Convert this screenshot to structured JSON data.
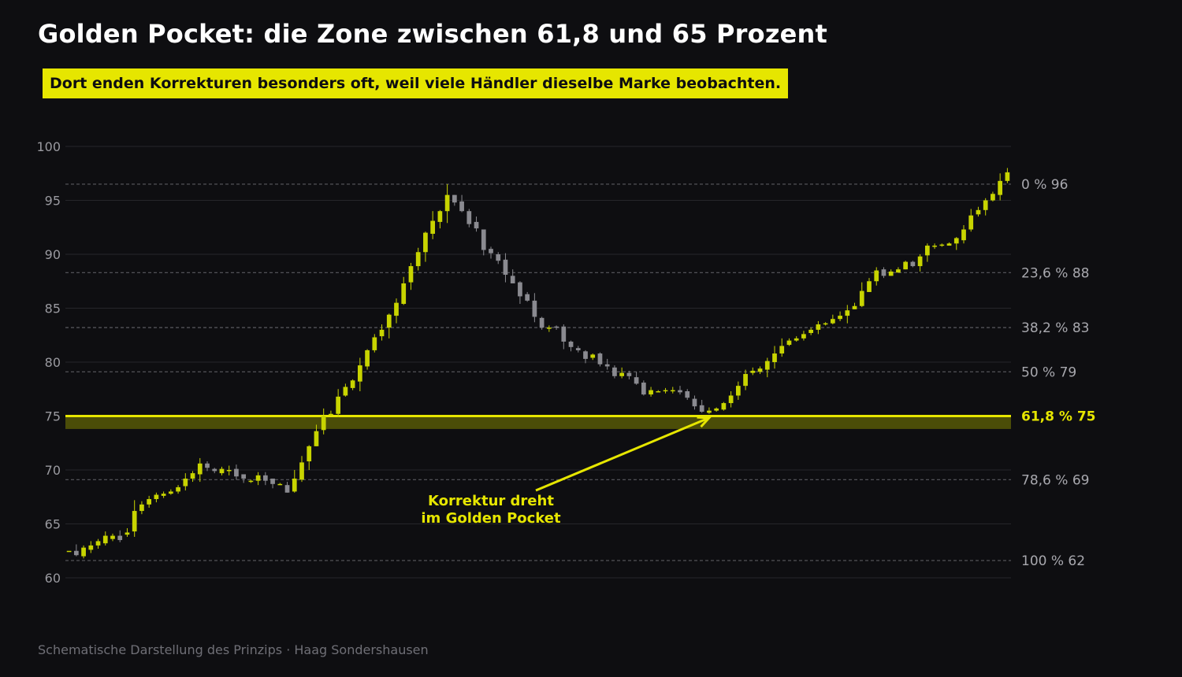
{
  "title": "Golden Pocket: die Zone zwischen 61,8 und 65 Prozent",
  "subtitle": "Dort enden Korrekturen besonders oft, weil viele Händler dieselbe Marke beobachten.",
  "footer": "Schematische Darstellung des Prinzips  ·  Haag Sondershausen",
  "colors": {
    "background": "#0e0e11",
    "accent": "#e6e600",
    "bull": "#c8d400",
    "bear": "#8a8a90",
    "grid": "#26262b",
    "fib_line": "#5a5a60",
    "zone_fill": "#4b4d08"
  },
  "chart_data": {
    "type": "candlestick",
    "ylim": [
      60,
      100
    ],
    "yticks": [
      60,
      65,
      70,
      75,
      80,
      85,
      90,
      95,
      100
    ],
    "grid": true,
    "fib_levels": [
      {
        "pct": "0 %",
        "price": "96",
        "value": 96.5,
        "highlight": false
      },
      {
        "pct": "23,6 %",
        "price": "88",
        "value": 88.3,
        "highlight": false
      },
      {
        "pct": "38,2 %",
        "price": "83",
        "value": 83.2,
        "highlight": false
      },
      {
        "pct": "50 %",
        "price": "79",
        "value": 79.1,
        "highlight": false
      },
      {
        "pct": "61,8 %",
        "price": "75",
        "value": 75.0,
        "highlight": true
      },
      {
        "pct": "78,6 %",
        "price": "69",
        "value": 69.1,
        "highlight": false
      },
      {
        "pct": "100 %",
        "price": "62",
        "value": 61.6,
        "highlight": false
      }
    ],
    "golden_pocket": [
      73.8,
      75.0
    ],
    "annotation": {
      "lines": [
        "Korrektur dreht",
        "im Golden Pocket"
      ],
      "target_candle": 88
    },
    "candles": [
      [
        62.5,
        62.5,
        62.5,
        62.5
      ],
      [
        62.5,
        62.1,
        63.1,
        62.0
      ],
      [
        62.0,
        62.8,
        63.0,
        61.8
      ],
      [
        62.6,
        63.0,
        63.4,
        62.3
      ],
      [
        63.0,
        63.4,
        63.6,
        62.7
      ],
      [
        63.2,
        63.9,
        64.3,
        63.0
      ],
      [
        63.6,
        63.9,
        64.1,
        63.4
      ],
      [
        63.9,
        63.5,
        64.4,
        63.3
      ],
      [
        64.0,
        64.2,
        64.6,
        63.8
      ],
      [
        64.3,
        66.2,
        67.2,
        63.8
      ],
      [
        66.2,
        66.8,
        67.1,
        65.9
      ],
      [
        66.8,
        67.3,
        67.6,
        66.5
      ],
      [
        67.3,
        67.7,
        67.9,
        67.0
      ],
      [
        67.6,
        67.8,
        68.0,
        67.4
      ],
      [
        67.8,
        68.0,
        68.2,
        67.7
      ],
      [
        68.0,
        68.4,
        68.6,
        67.8
      ],
      [
        68.5,
        69.2,
        69.7,
        68.1
      ],
      [
        69.2,
        69.7,
        69.9,
        68.9
      ],
      [
        69.6,
        70.6,
        71.1,
        68.9
      ],
      [
        70.6,
        70.2,
        70.8,
        69.9
      ],
      [
        70.1,
        69.9,
        70.2,
        69.7
      ],
      [
        69.7,
        70.1,
        70.3,
        69.5
      ],
      [
        69.9,
        70.0,
        70.4,
        69.5
      ],
      [
        70.1,
        69.4,
        70.5,
        69.1
      ],
      [
        69.6,
        69.2,
        69.6,
        68.8
      ],
      [
        69.0,
        69.0,
        69.1,
        68.8
      ],
      [
        69.0,
        69.5,
        69.8,
        68.6
      ],
      [
        69.5,
        69.0,
        69.8,
        68.6
      ],
      [
        69.2,
        68.7,
        69.2,
        68.3
      ],
      [
        68.6,
        68.7,
        68.8,
        68.6
      ],
      [
        68.6,
        67.9,
        68.9,
        67.9
      ],
      [
        68.0,
        69.2,
        70.0,
        67.9
      ],
      [
        69.1,
        70.7,
        71.3,
        68.9
      ],
      [
        70.8,
        72.2,
        72.3,
        70.0
      ],
      [
        72.2,
        73.6,
        74.2,
        72.2
      ],
      [
        73.7,
        75.0,
        75.7,
        73.3
      ],
      [
        75.1,
        75.2,
        75.5,
        75.0
      ],
      [
        75.2,
        76.8,
        77.5,
        74.9
      ],
      [
        76.9,
        77.7,
        78.0,
        76.8
      ],
      [
        77.6,
        78.3,
        78.4,
        77.4
      ],
      [
        78.2,
        79.7,
        80.4,
        77.3
      ],
      [
        79.6,
        81.1,
        81.2,
        79.3
      ],
      [
        81.1,
        82.3,
        82.6,
        80.9
      ],
      [
        82.4,
        83.0,
        83.5,
        82.0
      ],
      [
        83.2,
        84.4,
        84.5,
        82.2
      ],
      [
        84.3,
        85.5,
        85.9,
        83.6
      ],
      [
        85.4,
        87.3,
        87.9,
        85.3
      ],
      [
        87.4,
        88.9,
        89.2,
        86.7
      ],
      [
        88.9,
        90.2,
        90.6,
        88.5
      ],
      [
        90.2,
        92.0,
        92.1,
        89.3
      ],
      [
        91.9,
        93.1,
        94.0,
        91.4
      ],
      [
        93.0,
        94.0,
        94.1,
        92.4
      ],
      [
        94.0,
        95.5,
        96.5,
        92.9
      ],
      [
        95.5,
        94.8,
        95.5,
        94.5
      ],
      [
        94.9,
        94.0,
        95.5,
        93.9
      ],
      [
        94.0,
        92.8,
        94.2,
        92.5
      ],
      [
        93.0,
        92.4,
        93.5,
        92.1
      ],
      [
        92.3,
        90.4,
        92.3,
        89.9
      ],
      [
        90.5,
        90.1,
        90.7,
        89.6
      ],
      [
        90.0,
        89.4,
        90.2,
        89.1
      ],
      [
        89.5,
        88.1,
        90.1,
        87.4
      ],
      [
        88.0,
        87.3,
        88.6,
        87.3
      ],
      [
        87.4,
        86.1,
        87.5,
        85.4
      ],
      [
        86.3,
        85.7,
        86.5,
        85.6
      ],
      [
        85.7,
        84.2,
        86.4,
        83.7
      ],
      [
        84.1,
        83.2,
        84.2,
        83.0
      ],
      [
        83.2,
        83.2,
        83.4,
        82.8
      ],
      [
        83.3,
        83.2,
        83.4,
        83.0
      ],
      [
        83.3,
        81.9,
        83.5,
        81.2
      ],
      [
        81.9,
        81.4,
        82.0,
        81.0
      ],
      [
        81.3,
        81.1,
        81.5,
        80.9
      ],
      [
        81.0,
        80.3,
        81.1,
        79.9
      ],
      [
        80.4,
        80.7,
        80.8,
        80.2
      ],
      [
        80.8,
        79.8,
        80.9,
        79.6
      ],
      [
        79.8,
        79.6,
        80.3,
        79.3
      ],
      [
        79.5,
        78.7,
        79.7,
        78.5
      ],
      [
        78.7,
        79.0,
        79.5,
        78.5
      ],
      [
        79.0,
        78.7,
        79.2,
        78.4
      ],
      [
        78.6,
        78.0,
        79.1,
        77.9
      ],
      [
        78.1,
        77.0,
        78.3,
        76.9
      ],
      [
        77.0,
        77.4,
        77.7,
        76.8
      ],
      [
        77.3,
        77.3,
        77.4,
        77.2
      ],
      [
        77.3,
        77.4,
        77.6,
        77.1
      ],
      [
        77.4,
        77.4,
        77.7,
        77.1
      ],
      [
        77.4,
        77.2,
        77.8,
        77.0
      ],
      [
        77.3,
        76.7,
        77.5,
        76.5
      ],
      [
        76.6,
        75.9,
        76.9,
        75.6
      ],
      [
        76.0,
        75.4,
        76.5,
        75.3
      ],
      [
        75.3,
        75.5,
        75.8,
        75.2
      ],
      [
        75.5,
        75.7,
        75.8,
        75.4
      ],
      [
        75.6,
        76.2,
        76.3,
        75.5
      ],
      [
        76.2,
        76.9,
        77.3,
        75.8
      ],
      [
        76.9,
        77.8,
        78.2,
        76.5
      ],
      [
        77.8,
        78.9,
        79.3,
        77.4
      ],
      [
        79.0,
        79.2,
        79.5,
        78.8
      ],
      [
        79.1,
        79.4,
        79.6,
        78.9
      ],
      [
        79.3,
        80.1,
        80.4,
        78.6
      ],
      [
        80.0,
        80.8,
        81.5,
        79.4
      ],
      [
        80.8,
        81.5,
        82.2,
        80.5
      ],
      [
        81.6,
        82.0,
        82.2,
        81.5
      ],
      [
        82.0,
        82.2,
        82.4,
        81.9
      ],
      [
        82.2,
        82.6,
        82.9,
        82.0
      ],
      [
        82.7,
        83.0,
        83.2,
        82.5
      ],
      [
        83.0,
        83.5,
        83.8,
        82.6
      ],
      [
        83.5,
        83.6,
        83.7,
        83.4
      ],
      [
        83.6,
        84.0,
        84.4,
        83.5
      ],
      [
        84.0,
        84.3,
        84.7,
        83.8
      ],
      [
        84.3,
        84.8,
        85.3,
        83.6
      ],
      [
        84.9,
        85.2,
        85.5,
        84.9
      ],
      [
        85.2,
        86.6,
        87.4,
        85.1
      ],
      [
        86.5,
        87.5,
        87.8,
        86.5
      ],
      [
        87.5,
        88.5,
        88.8,
        87.1
      ],
      [
        88.6,
        88.0,
        88.8,
        87.8
      ],
      [
        88.0,
        88.4,
        88.6,
        88.0
      ],
      [
        88.3,
        88.6,
        88.8,
        88.3
      ],
      [
        88.6,
        89.3,
        89.4,
        88.6
      ],
      [
        89.3,
        88.9,
        89.4,
        88.8
      ],
      [
        88.9,
        89.8,
        90.0,
        88.4
      ],
      [
        89.9,
        90.8,
        91.0,
        89.3
      ],
      [
        90.8,
        90.8,
        91.0,
        90.5
      ],
      [
        90.8,
        90.9,
        91.0,
        90.7
      ],
      [
        90.8,
        91.0,
        91.1,
        90.8
      ],
      [
        91.0,
        91.5,
        91.6,
        90.4
      ],
      [
        91.3,
        92.3,
        92.7,
        91.0
      ],
      [
        92.3,
        93.6,
        94.2,
        92.1
      ],
      [
        93.7,
        94.1,
        94.4,
        93.5
      ],
      [
        94.1,
        95.0,
        95.2,
        93.6
      ],
      [
        95.0,
        95.6,
        95.8,
        94.9
      ],
      [
        95.5,
        96.8,
        97.5,
        95.0
      ],
      [
        96.8,
        97.6,
        98.0,
        96.6
      ]
    ]
  }
}
